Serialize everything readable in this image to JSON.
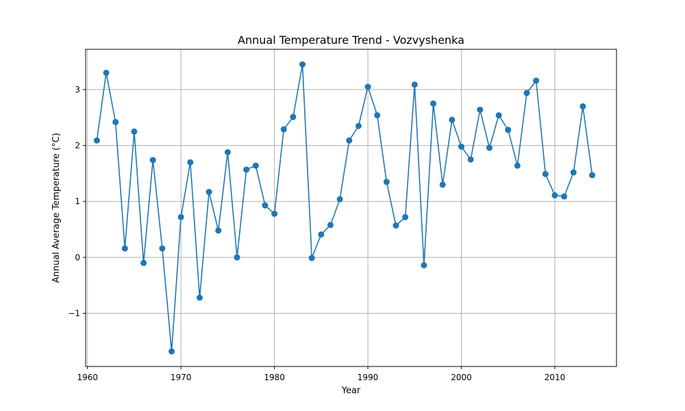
{
  "chart_data": {
    "type": "line",
    "title": "Annual Temperature Trend - Vozvyshenka",
    "xlabel": "Year",
    "ylabel": "Annual Average Temperature (°C)",
    "xlim": [
      1959.8,
      2016.6
    ],
    "ylim": [
      -1.95,
      3.72
    ],
    "xticks": [
      1960,
      1970,
      1980,
      1990,
      2000,
      2010
    ],
    "yticks": [
      -1,
      0,
      1,
      2,
      3
    ],
    "ytick_labels": [
      "−1",
      "0",
      "1",
      "2",
      "3"
    ],
    "grid": true,
    "color": "#1f77b4",
    "x": [
      1961,
      1962,
      1963,
      1964,
      1965,
      1966,
      1967,
      1968,
      1969,
      1970,
      1971,
      1972,
      1973,
      1974,
      1975,
      1976,
      1977,
      1978,
      1979,
      1980,
      1981,
      1982,
      1983,
      1984,
      1985,
      1986,
      1987,
      1988,
      1989,
      1990,
      1991,
      1992,
      1993,
      1994,
      1995,
      1996,
      1997,
      1998,
      1999,
      2000,
      2001,
      2002,
      2003,
      2004,
      2005,
      2006,
      2007,
      2008,
      2009,
      2010,
      2011,
      2012,
      2013,
      2014
    ],
    "y": [
      2.09,
      3.3,
      2.42,
      0.16,
      2.25,
      -0.1,
      1.74,
      0.16,
      -1.68,
      0.72,
      1.7,
      -0.72,
      1.17,
      0.48,
      1.88,
      0.0,
      1.57,
      1.64,
      0.93,
      0.78,
      2.29,
      2.51,
      3.45,
      -0.01,
      0.41,
      0.58,
      1.04,
      2.09,
      2.35,
      3.05,
      2.54,
      1.35,
      0.57,
      0.72,
      3.09,
      -0.14,
      2.75,
      1.3,
      2.46,
      1.98,
      1.75,
      2.64,
      1.96,
      2.54,
      2.28,
      1.64,
      2.94,
      3.16,
      1.49,
      1.11,
      1.09,
      1.52,
      2.7,
      1.47
    ]
  }
}
